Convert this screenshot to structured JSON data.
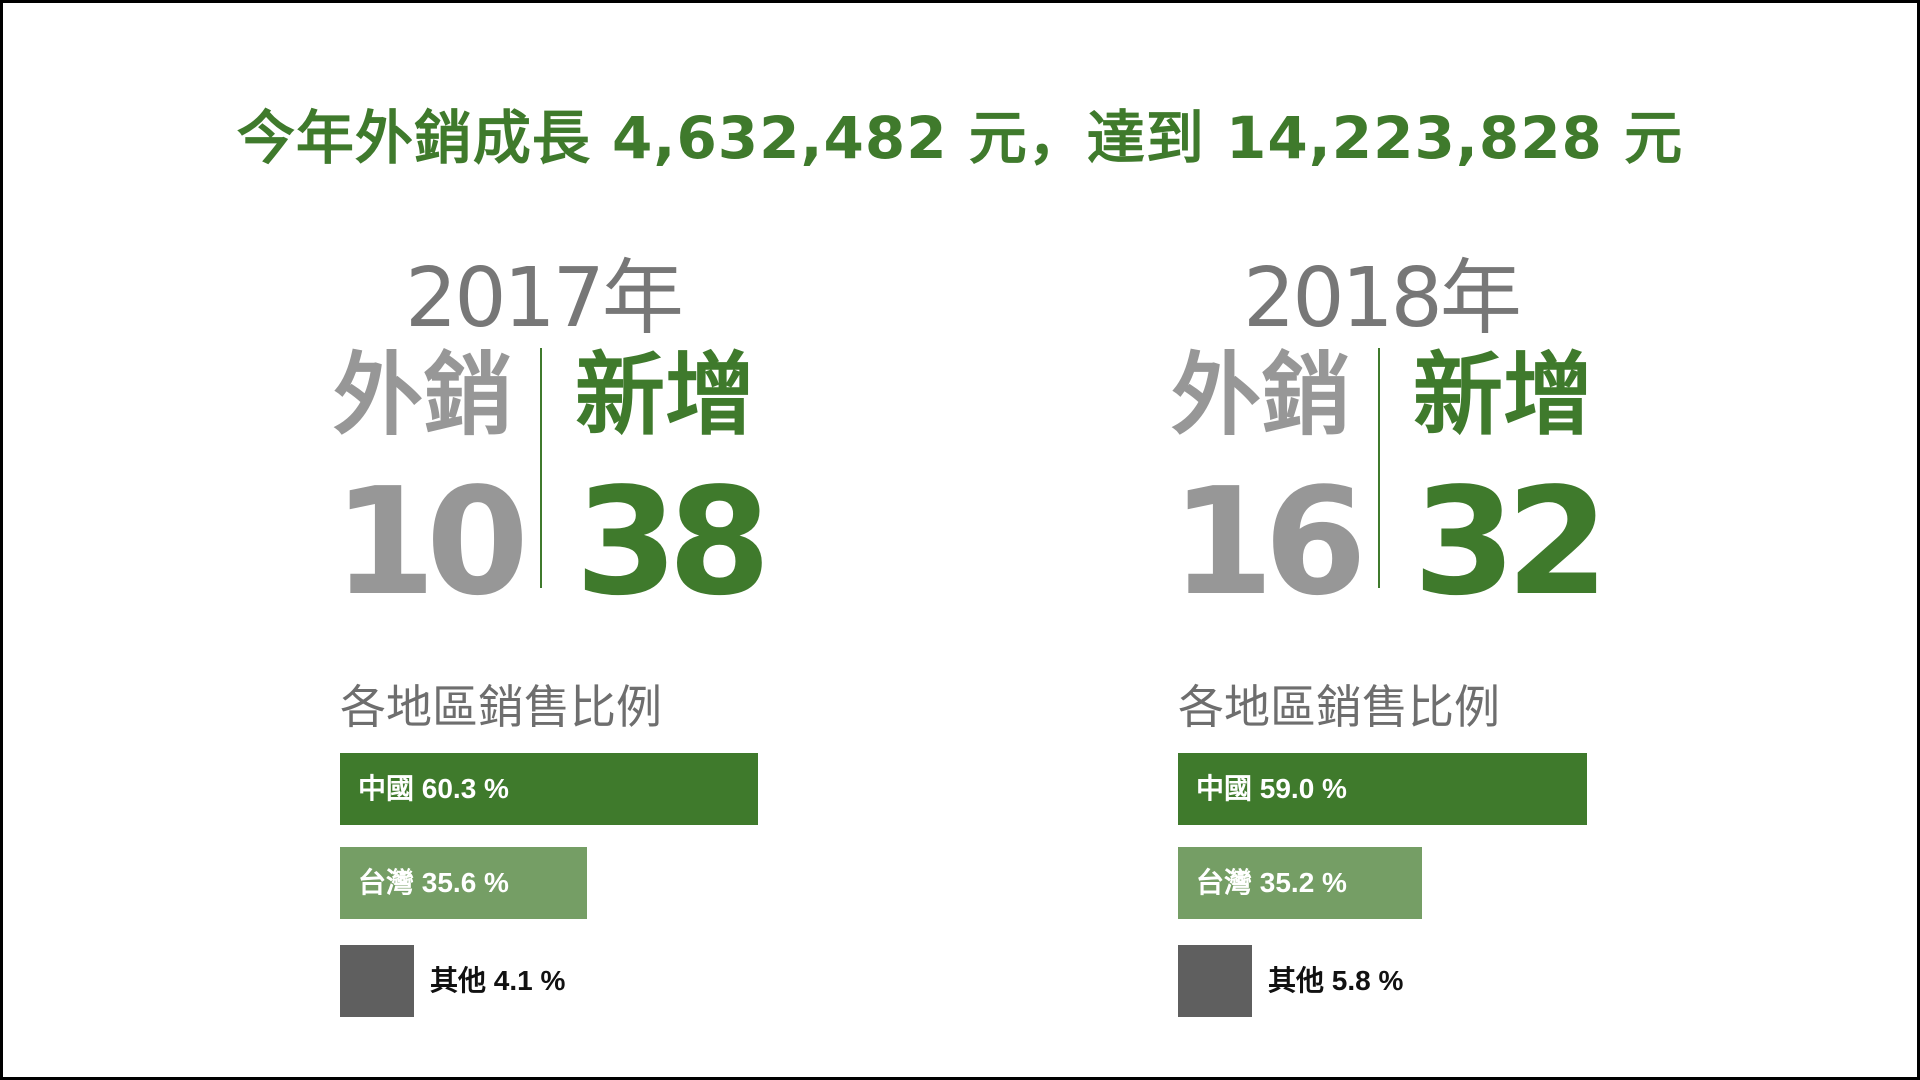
{
  "headline": "今年外銷成長 4,632,482 元，達到 14,223,828 元",
  "colors": {
    "accent_green": "#3f7a2c",
    "light_green": "#759e65",
    "dark_grey": "#5f5f5f",
    "kpi_grey": "#979797"
  },
  "section_title": "各地區銷售比例",
  "panels": [
    {
      "year": "2017年",
      "export_label": "外銷",
      "export_count": "10",
      "new_label": "新增",
      "new_count": "38"
    },
    {
      "year": "2018年",
      "export_label": "外銷",
      "export_count": "16",
      "new_label": "新增",
      "new_count": "32"
    }
  ],
  "chart_data": [
    {
      "type": "bar",
      "orientation": "horizontal",
      "title": "各地區銷售比例",
      "categories": [
        "中國",
        "台灣",
        "其他"
      ],
      "values": [
        60.3,
        35.6,
        4.1
      ],
      "labels": [
        "中國 60.3 %",
        "台灣 35.6 %",
        "其他 4.1 %"
      ],
      "colors": [
        "#3f7a2c",
        "#759e65",
        "#5f5f5f"
      ]
    },
    {
      "type": "bar",
      "orientation": "horizontal",
      "title": "各地區銷售比例",
      "categories": [
        "中國",
        "台灣",
        "其他"
      ],
      "values": [
        59.0,
        35.2,
        5.8
      ],
      "labels": [
        "中國 59.0 %",
        "台灣 35.2 %",
        "其他 5.8 %"
      ],
      "colors": [
        "#3f7a2c",
        "#759e65",
        "#5f5f5f"
      ]
    }
  ]
}
